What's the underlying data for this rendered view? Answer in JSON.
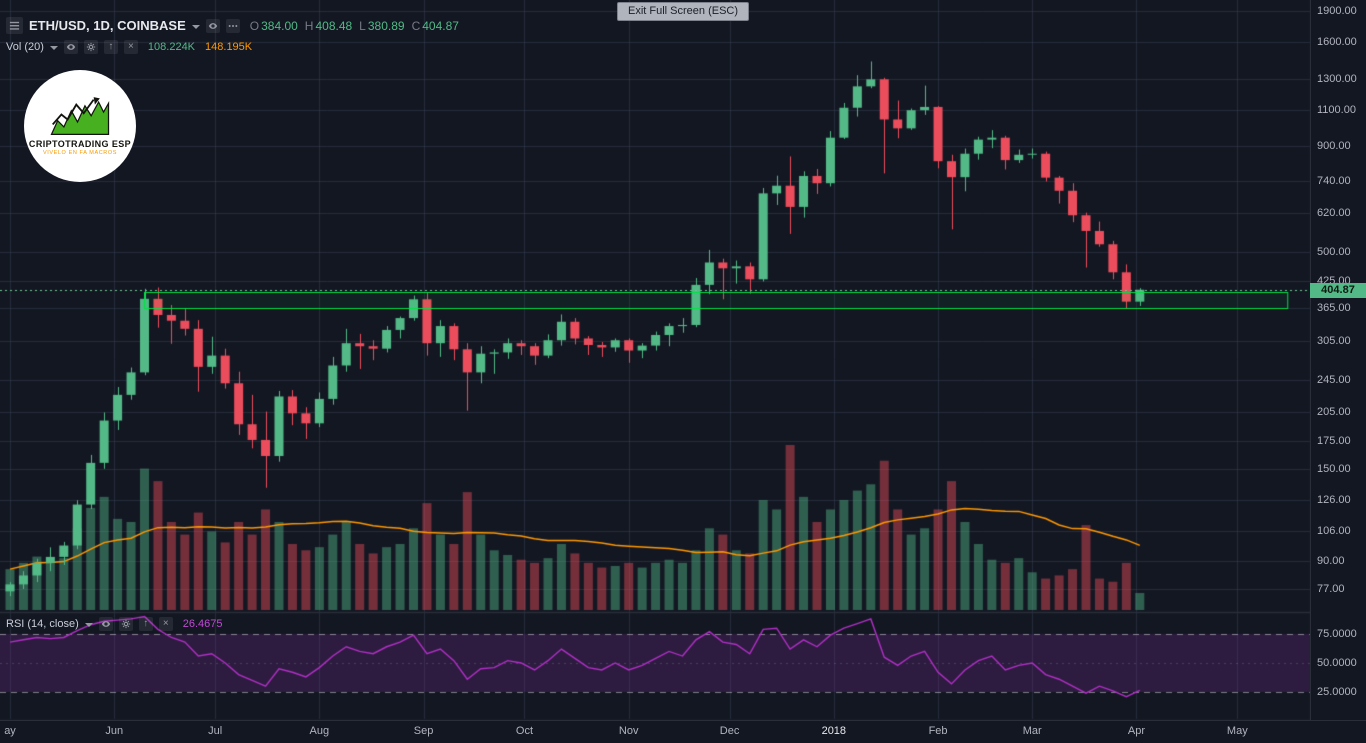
{
  "tooltip": {
    "text": "Exit Full Screen (ESC)"
  },
  "legend": {
    "symbol_title": "ETH/USD, 1D, COINBASE",
    "ohlc": [
      {
        "k": "O",
        "v": "384.00"
      },
      {
        "k": "H",
        "v": "408.48"
      },
      {
        "k": "L",
        "v": "380.89"
      },
      {
        "k": "C",
        "v": "404.87"
      }
    ],
    "volume_label": "Vol (20)",
    "volume_value": "108.224K",
    "volume_ma_value": "148.195K",
    "rsi_label": "RSI (14, close)",
    "rsi_value": "26.4675"
  },
  "logo": {
    "title": "CRIPTOTRADING ESP",
    "subtitle": "VIVELO EN FA MACROS"
  },
  "icons": [
    "menu",
    "chevron-down",
    "eye",
    "more-options",
    "settings",
    "arrow-up",
    "close"
  ],
  "colors": {
    "background": "#131722",
    "up": "#53b987",
    "down": "#eb4d5c",
    "volume_ma": "#ff9800",
    "rsi_line": "#b32fc9",
    "rsi_band_fill": "rgba(123,42,150,0.25)",
    "rect_border": "#00e244",
    "last_price_line": "#6fc693",
    "grid": "rgba(58,64,84,0.5)",
    "axis_text": "#b2b5be",
    "tag_bg": "#53b987"
  },
  "chart_data": {
    "type": "candlestick",
    "symbol": "ETH/USD",
    "interval": "1D",
    "exchange": "COINBASE",
    "scale": "logarithmic",
    "days_per_candle": 4,
    "price_axis_ticks": [
      1900,
      1600,
      1300,
      1100,
      900,
      740,
      620,
      500,
      425,
      365,
      305,
      245,
      205,
      175,
      150,
      126,
      106,
      90,
      77
    ],
    "rsi_axis_ticks": [
      75,
      50,
      25
    ],
    "time_axis": {
      "labels": [
        "ay",
        "Jun",
        "Jul",
        "Aug",
        "Sep",
        "Oct",
        "Nov",
        "Dec",
        "2018",
        "Feb",
        "Mar",
        "Apr",
        "May"
      ],
      "index_positions": [
        0,
        7.75,
        15.25,
        23,
        30.75,
        38.25,
        46,
        53.5,
        61.25,
        69,
        76,
        83.75,
        91.25
      ]
    },
    "candles": {
      "first_open": 76,
      "hlc": [
        [
          80,
          74,
          79
        ],
        [
          85,
          77,
          83
        ],
        [
          91,
          80,
          89
        ],
        [
          97,
          85,
          92
        ],
        [
          100,
          88,
          98
        ],
        [
          126,
          96,
          123
        ],
        [
          162,
          120,
          155
        ],
        [
          205,
          150,
          196
        ],
        [
          236,
          186,
          226
        ],
        [
          263,
          220,
          256
        ],
        [
          407,
          252,
          385
        ],
        [
          410,
          328,
          352
        ],
        [
          372,
          300,
          341
        ],
        [
          366,
          314,
          326
        ],
        [
          342,
          230,
          264
        ],
        [
          312,
          254,
          281
        ],
        [
          292,
          234,
          241
        ],
        [
          257,
          181,
          192
        ],
        [
          226,
          168,
          176
        ],
        [
          206,
          135,
          161
        ],
        [
          231,
          156,
          224
        ],
        [
          232,
          191,
          204
        ],
        [
          211,
          177,
          193
        ],
        [
          229,
          189,
          221
        ],
        [
          279,
          214,
          266
        ],
        [
          326,
          257,
          301
        ],
        [
          317,
          261,
          296
        ],
        [
          306,
          274,
          292
        ],
        [
          331,
          286,
          324
        ],
        [
          349,
          309,
          346
        ],
        [
          392,
          341,
          384
        ],
        [
          398,
          281,
          301
        ],
        [
          342,
          279,
          331
        ],
        [
          336,
          274,
          291
        ],
        [
          301,
          207,
          256
        ],
        [
          296,
          241,
          284
        ],
        [
          291,
          254,
          286
        ],
        [
          309,
          276,
          301
        ],
        [
          306,
          282,
          296
        ],
        [
          301,
          267,
          281
        ],
        [
          316,
          277,
          306
        ],
        [
          353,
          297,
          339
        ],
        [
          346,
          299,
          309
        ],
        [
          313,
          282,
          298
        ],
        [
          303,
          279,
          294
        ],
        [
          309,
          287,
          306
        ],
        [
          309,
          270,
          289
        ],
        [
          301,
          277,
          297
        ],
        [
          321,
          289,
          315
        ],
        [
          336,
          296,
          331
        ],
        [
          346,
          319,
          333
        ],
        [
          432,
          329,
          416
        ],
        [
          505,
          395,
          471
        ],
        [
          481,
          384,
          456
        ],
        [
          476,
          419,
          461
        ],
        [
          471,
          396,
          429
        ],
        [
          712,
          424,
          691
        ],
        [
          762,
          648,
          721
        ],
        [
          848,
          552,
          641
        ],
        [
          781,
          604,
          761
        ],
        [
          791,
          689,
          731
        ],
        [
          976,
          718,
          941
        ],
        [
          1141,
          934,
          1111
        ],
        [
          1331,
          1058,
          1251
        ],
        [
          1436,
          1238,
          1301
        ],
        [
          1312,
          772,
          1041
        ],
        [
          1156,
          938,
          991
        ],
        [
          1106,
          983,
          1096
        ],
        [
          1256,
          1068,
          1116
        ],
        [
          1121,
          794,
          826
        ],
        [
          856,
          566,
          756
        ],
        [
          886,
          699,
          861
        ],
        [
          946,
          833,
          931
        ],
        [
          981,
          888,
          941
        ],
        [
          951,
          789,
          831
        ],
        [
          881,
          818,
          856
        ],
        [
          886,
          838,
          861
        ],
        [
          871,
          738,
          754
        ],
        [
          761,
          653,
          701
        ],
        [
          731,
          589,
          612
        ],
        [
          621,
          458,
          561
        ],
        [
          591,
          514,
          521
        ],
        [
          531,
          429,
          446
        ],
        [
          466,
          365,
          379
        ],
        [
          408.48,
          370,
          404.87
        ]
      ]
    },
    "volume": {
      "units": "K",
      "ma_period": 20,
      "values": [
        260,
        300,
        340,
        310,
        330,
        520,
        650,
        720,
        580,
        560,
        900,
        820,
        560,
        480,
        620,
        500,
        430,
        560,
        480,
        640,
        560,
        420,
        380,
        400,
        480,
        560,
        420,
        360,
        400,
        420,
        520,
        680,
        480,
        420,
        750,
        480,
        380,
        350,
        320,
        300,
        330,
        420,
        360,
        300,
        270,
        280,
        300,
        270,
        300,
        320,
        300,
        380,
        520,
        480,
        380,
        360,
        700,
        640,
        1050,
        720,
        560,
        640,
        700,
        760,
        800,
        950,
        640,
        480,
        520,
        640,
        820,
        560,
        420,
        320,
        300,
        330,
        240,
        200,
        220,
        260,
        540,
        200,
        180,
        300,
        108
      ]
    },
    "rsi": {
      "period": 14,
      "source": "close",
      "upper_band": 75,
      "middle_band": 50,
      "lower_band": 25,
      "values": [
        68,
        70,
        72,
        71,
        72,
        78,
        83,
        86,
        87,
        88,
        90,
        79,
        72,
        68,
        56,
        58,
        50,
        40,
        35,
        30,
        45,
        42,
        38,
        46,
        56,
        64,
        60,
        58,
        64,
        68,
        74,
        58,
        62,
        52,
        36,
        45,
        46,
        52,
        50,
        44,
        52,
        62,
        54,
        46,
        44,
        50,
        44,
        48,
        54,
        60,
        56,
        70,
        77,
        68,
        66,
        58,
        79,
        80,
        62,
        70,
        64,
        74,
        80,
        84,
        88,
        55,
        48,
        56,
        60,
        42,
        32,
        44,
        52,
        56,
        44,
        48,
        50,
        40,
        36,
        30,
        24,
        30,
        26,
        21,
        26.4675
      ]
    },
    "last_price": 404.87,
    "last_price_label": "404.87",
    "annotations": {
      "rectangle": {
        "price_top": 400,
        "price_bottom": 365,
        "start_index": 10,
        "end_index": 95
      }
    }
  }
}
